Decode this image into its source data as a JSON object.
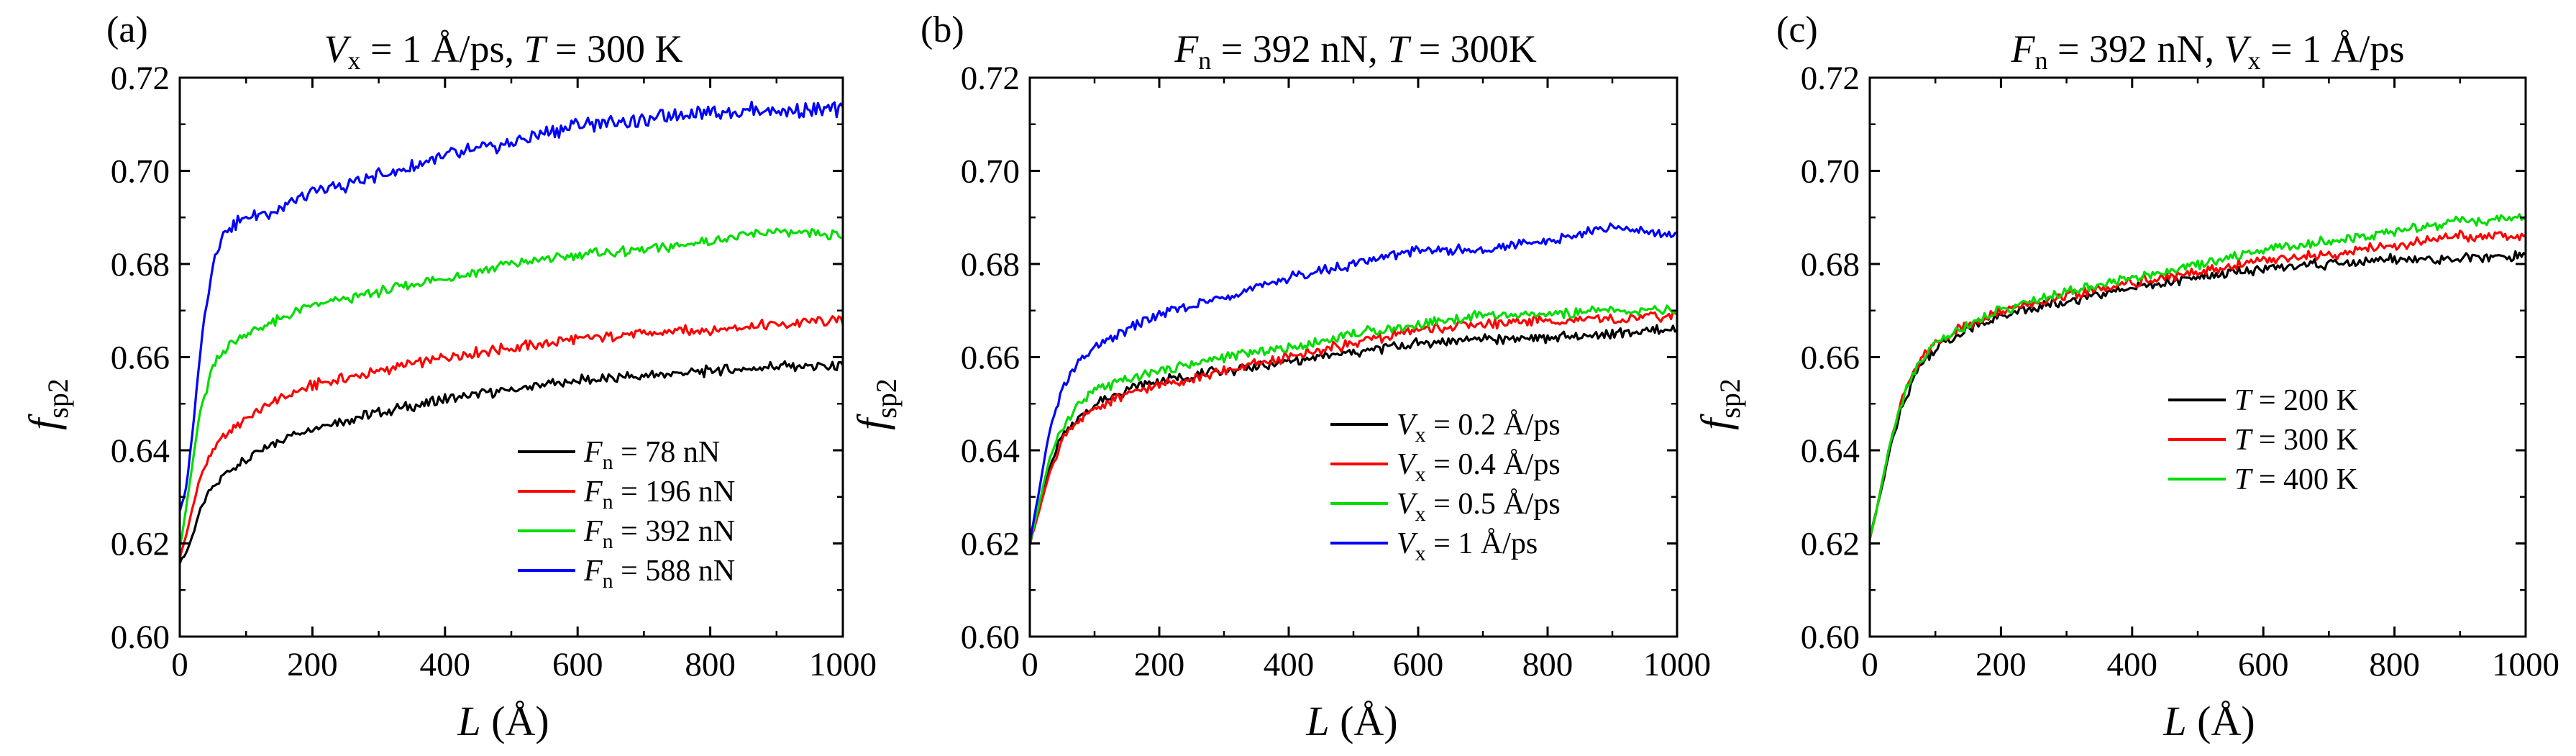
{
  "figure": {
    "panels": [
      {
        "label": "(a)",
        "title": {
          "v1": "V",
          "v1sub": "x",
          "v1rest": " = 1 Å/ps, ",
          "v2": "T",
          "v2rest": " = 300 K"
        },
        "ylabel": {
          "main": "f",
          "sub": "sp2"
        },
        "xlabel": {
          "main": "L",
          "rest": " (Å)"
        }
      },
      {
        "label": "(b)",
        "title": {
          "v1": "F",
          "v1sub": "n",
          "v1rest": " = 392 nN, ",
          "v2": "T",
          "v2rest": " = 300K"
        },
        "ylabel": {
          "main": "f",
          "sub": "sp2"
        },
        "xlabel": {
          "main": "L",
          "rest": " (Å)"
        }
      },
      {
        "label": "(c)",
        "title": {
          "v1": "F",
          "v1sub": "n",
          "v1rest": " = 392 nN, ",
          "v2": "V",
          "v2sub": "x",
          "v2rest": " = 1 Å/ps"
        },
        "ylabel": {
          "main": "f",
          "sub": "sp2"
        },
        "xlabel": {
          "main": "L",
          "rest": " (Å)"
        }
      }
    ]
  },
  "chart_data": [
    {
      "type": "line",
      "panel": "(a)",
      "title": "V_x = 1 Å/ps, T = 300 K",
      "xlabel": "L (Å)",
      "ylabel": "f_sp2",
      "xlim": [
        0,
        1000
      ],
      "ylim": [
        0.6,
        0.72
      ],
      "xticks": [
        "0",
        "200",
        "400",
        "600",
        "800",
        "1000"
      ],
      "yticks": [
        "0.60",
        "0.62",
        "0.64",
        "0.66",
        "0.68",
        "0.70",
        "0.72"
      ],
      "legend_position": "bottom-right",
      "series": [
        {
          "name": "F_n = 78 nN",
          "var": "F",
          "sub": "n",
          "rest": " = 78 nN",
          "color": "#000000",
          "x": [
            0,
            10,
            20,
            30,
            50,
            75,
            100,
            150,
            200,
            300,
            400,
            500,
            600,
            700,
            800,
            900,
            1000
          ],
          "y": [
            0.616,
            0.618,
            0.622,
            0.627,
            0.632,
            0.636,
            0.638,
            0.642,
            0.645,
            0.648,
            0.651,
            0.653,
            0.655,
            0.656,
            0.657,
            0.658,
            0.658
          ]
        },
        {
          "name": "F_n = 196 nN",
          "var": "F",
          "sub": "n",
          "rest": " = 196 nN",
          "color": "#ff0000",
          "x": [
            0,
            10,
            20,
            30,
            50,
            75,
            100,
            150,
            200,
            300,
            400,
            500,
            600,
            700,
            800,
            900,
            1000
          ],
          "y": [
            0.617,
            0.622,
            0.628,
            0.634,
            0.64,
            0.644,
            0.647,
            0.651,
            0.654,
            0.657,
            0.66,
            0.662,
            0.664,
            0.665,
            0.666,
            0.667,
            0.668
          ]
        },
        {
          "name": "F_n = 392 nN",
          "var": "F",
          "sub": "n",
          "rest": " = 392 nN",
          "color": "#00dd00",
          "x": [
            0,
            10,
            20,
            30,
            50,
            75,
            100,
            150,
            200,
            300,
            400,
            500,
            600,
            700,
            800,
            900,
            1000
          ],
          "y": [
            0.619,
            0.628,
            0.638,
            0.648,
            0.658,
            0.663,
            0.665,
            0.668,
            0.671,
            0.674,
            0.677,
            0.68,
            0.682,
            0.683,
            0.685,
            0.687,
            0.686
          ]
        },
        {
          "name": "F_n = 588 nN",
          "var": "F",
          "sub": "n",
          "rest": " = 588 nN",
          "color": "#0000ff",
          "x": [
            0,
            10,
            20,
            30,
            40,
            50,
            60,
            75,
            100,
            150,
            200,
            300,
            400,
            500,
            600,
            700,
            800,
            900,
            1000
          ],
          "y": [
            0.627,
            0.632,
            0.645,
            0.66,
            0.672,
            0.68,
            0.685,
            0.688,
            0.69,
            0.692,
            0.695,
            0.699,
            0.703,
            0.706,
            0.71,
            0.711,
            0.713,
            0.713,
            0.713
          ]
        }
      ]
    },
    {
      "type": "line",
      "panel": "(b)",
      "title": "F_n = 392 nN, T = 300K",
      "xlabel": "L (Å)",
      "ylabel": "f_sp2",
      "xlim": [
        0,
        1000
      ],
      "ylim": [
        0.6,
        0.72
      ],
      "xticks": [
        "0",
        "200",
        "400",
        "600",
        "800",
        "1000"
      ],
      "yticks": [
        "0.60",
        "0.62",
        "0.64",
        "0.66",
        "0.68",
        "0.70",
        "0.72"
      ],
      "legend_position": "bottom-right",
      "series": [
        {
          "name": "V_x = 0.2 Å/ps",
          "var": "V",
          "sub": "x",
          "rest": " = 0.2 Å/ps",
          "color": "#000000",
          "x": [
            0,
            10,
            20,
            30,
            50,
            75,
            100,
            150,
            200,
            300,
            400,
            500,
            600,
            700,
            800,
            900,
            1000
          ],
          "y": [
            0.62,
            0.625,
            0.63,
            0.636,
            0.643,
            0.647,
            0.65,
            0.653,
            0.655,
            0.657,
            0.659,
            0.661,
            0.663,
            0.664,
            0.664,
            0.665,
            0.666
          ]
        },
        {
          "name": "V_x = 0.4 Å/ps",
          "var": "V",
          "sub": "x",
          "rest": " = 0.4 Å/ps",
          "color": "#ff0000",
          "x": [
            0,
            10,
            20,
            30,
            50,
            75,
            100,
            150,
            200,
            300,
            400,
            500,
            600,
            700,
            800,
            900,
            1000
          ],
          "y": [
            0.62,
            0.625,
            0.63,
            0.635,
            0.642,
            0.646,
            0.649,
            0.652,
            0.654,
            0.657,
            0.66,
            0.663,
            0.666,
            0.667,
            0.668,
            0.668,
            0.669
          ]
        },
        {
          "name": "V_x = 0.5 Å/ps",
          "var": "V",
          "sub": "x",
          "rest": " = 0.5 Å/ps",
          "color": "#00dd00",
          "x": [
            0,
            10,
            20,
            30,
            50,
            75,
            100,
            150,
            200,
            300,
            400,
            500,
            600,
            700,
            800,
            900,
            1000
          ],
          "y": [
            0.62,
            0.626,
            0.632,
            0.638,
            0.645,
            0.65,
            0.653,
            0.655,
            0.657,
            0.66,
            0.662,
            0.665,
            0.667,
            0.669,
            0.669,
            0.67,
            0.67
          ]
        },
        {
          "name": "V_x = 1 Å/ps",
          "var": "V",
          "sub": "x",
          "rest": " = 1 Å/ps",
          "color": "#0000ff",
          "x": [
            0,
            10,
            20,
            30,
            50,
            75,
            100,
            150,
            200,
            300,
            400,
            500,
            600,
            700,
            800,
            900,
            1000
          ],
          "y": [
            0.62,
            0.628,
            0.636,
            0.644,
            0.653,
            0.659,
            0.662,
            0.666,
            0.669,
            0.673,
            0.677,
            0.68,
            0.683,
            0.683,
            0.685,
            0.688,
            0.686
          ]
        }
      ]
    },
    {
      "type": "line",
      "panel": "(c)",
      "title": "F_n = 392 nN, V_x = 1 Å/ps",
      "xlabel": "L (Å)",
      "ylabel": "f_sp2",
      "xlim": [
        0,
        1000
      ],
      "ylim": [
        0.6,
        0.72
      ],
      "xticks": [
        "0",
        "200",
        "400",
        "600",
        "800",
        "1000"
      ],
      "yticks": [
        "0.60",
        "0.62",
        "0.64",
        "0.66",
        "0.68",
        "0.70",
        "0.72"
      ],
      "legend_position": "center-right",
      "series": [
        {
          "name": "T = 200 K",
          "var": "T",
          "sub": "",
          "rest": " = 200 K",
          "color": "#000000",
          "x": [
            0,
            10,
            20,
            30,
            50,
            75,
            100,
            150,
            200,
            300,
            400,
            500,
            600,
            700,
            800,
            900,
            1000
          ],
          "y": [
            0.621,
            0.627,
            0.633,
            0.64,
            0.65,
            0.658,
            0.662,
            0.666,
            0.669,
            0.672,
            0.675,
            0.677,
            0.679,
            0.68,
            0.681,
            0.681,
            0.682
          ]
        },
        {
          "name": "T = 300 K",
          "var": "T",
          "sub": "",
          "rest": " = 300 K",
          "color": "#ff0000",
          "x": [
            0,
            10,
            20,
            30,
            50,
            75,
            100,
            150,
            200,
            300,
            400,
            500,
            600,
            700,
            800,
            900,
            1000
          ],
          "y": [
            0.621,
            0.627,
            0.634,
            0.641,
            0.651,
            0.659,
            0.663,
            0.667,
            0.67,
            0.673,
            0.676,
            0.678,
            0.681,
            0.682,
            0.684,
            0.686,
            0.686
          ]
        },
        {
          "name": "T = 400 K",
          "var": "T",
          "sub": "",
          "rest": " = 400 K",
          "color": "#00dd00",
          "x": [
            0,
            10,
            20,
            30,
            50,
            75,
            100,
            150,
            200,
            300,
            400,
            500,
            600,
            700,
            800,
            900,
            1000
          ],
          "y": [
            0.621,
            0.627,
            0.634,
            0.641,
            0.651,
            0.659,
            0.663,
            0.667,
            0.67,
            0.674,
            0.677,
            0.68,
            0.683,
            0.685,
            0.687,
            0.689,
            0.69
          ]
        }
      ]
    }
  ]
}
